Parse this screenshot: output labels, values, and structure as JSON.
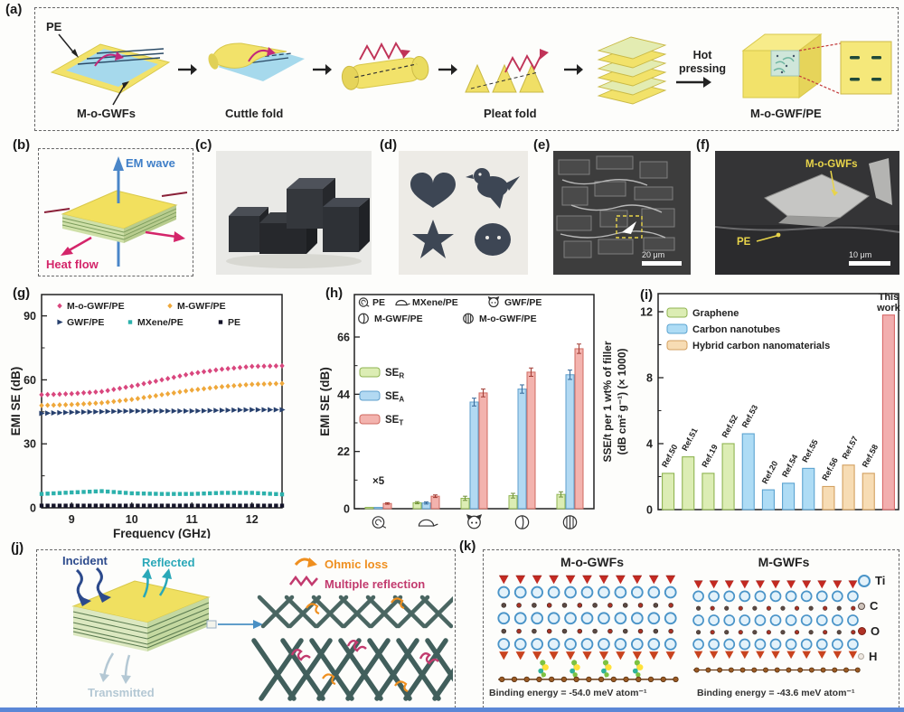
{
  "figure": {
    "panel_a": {
      "label": "(a)",
      "pe": "PE",
      "material": "M-o-GWFs",
      "step_cuttle": "Cuttle fold",
      "step_pleat": "Pleat fold",
      "process": "Hot pressing",
      "product": "M-o-GWF/PE"
    },
    "panel_b": {
      "label": "(b)",
      "em_wave": "EM wave",
      "heat_flow": "Heat flow"
    },
    "panel_c": {
      "label": "(c)"
    },
    "panel_d": {
      "label": "(d)"
    },
    "panel_e": {
      "label": "(e)",
      "scale": "20 μm"
    },
    "panel_f": {
      "label": "(f)",
      "top_label": "M-o-GWFs",
      "bottom_label": "PE",
      "scale": "10 μm"
    },
    "panel_g": {
      "label": "(g)"
    },
    "panel_h": {
      "label": "(h)"
    },
    "panel_i": {
      "label": "(i)"
    },
    "panel_j": {
      "label": "(j)",
      "incident": "Incident",
      "reflected": "Reflected",
      "transmitted": "Transmitted",
      "ohmic": "Ohmic loss",
      "multiple": "Multiple reflection"
    },
    "panel_k": {
      "label": "(k)",
      "left_title": "M-o-GWFs",
      "right_title": "M-GWFs",
      "atoms": [
        "Ti",
        "C",
        "O",
        "H"
      ],
      "left_binding": "Binding energy = -54.0 meV atom⁻¹",
      "right_binding": "Binding energy = -43.6 meV atom⁻¹"
    }
  },
  "chart_data": [
    {
      "id": "g",
      "type": "scatter",
      "xlabel": "Frequency (GHz)",
      "ylabel": "EMI SE (dB)",
      "xlim": [
        8.5,
        12.5
      ],
      "ylim": [
        0,
        100
      ],
      "xticks": [
        9,
        10,
        11,
        12
      ],
      "yticks": [
        0,
        30,
        60,
        90
      ],
      "legend_position": "top-left-inside",
      "x": [
        8.5,
        9,
        9.5,
        10,
        10.5,
        11,
        11.5,
        12,
        12.5
      ],
      "series": [
        {
          "name": "M-o-GWF/PE",
          "color": "#d9477e",
          "marker": "diamond",
          "values": [
            53,
            53.5,
            54.5,
            57,
            60,
            63,
            65,
            66.3,
            66.6
          ]
        },
        {
          "name": "M-GWF/PE",
          "color": "#efa83b",
          "marker": "diamond",
          "values": [
            48,
            48.4,
            49.2,
            50.8,
            53,
            55.2,
            56.8,
            57.9,
            58.3
          ]
        },
        {
          "name": "GWF/PE",
          "color": "#27406e",
          "marker": "triangle-right",
          "values": [
            44.3,
            44.8,
            45.1,
            45.4,
            45.4,
            45.4,
            45.7,
            46,
            46
          ]
        },
        {
          "name": "MXene/PE",
          "color": "#2cb1ac",
          "marker": "square",
          "values": [
            6.5,
            7.2,
            7.8,
            6.8,
            6.5,
            6.5,
            7,
            7,
            6.3
          ]
        },
        {
          "name": "PE",
          "color": "#15152a",
          "marker": "square",
          "values": [
            1,
            1,
            1,
            1,
            1,
            1,
            1,
            1,
            1
          ]
        }
      ]
    },
    {
      "id": "h",
      "type": "bar",
      "ylabel": "EMI SE (dB)",
      "ylim": [
        0,
        72
      ],
      "yticks": [
        0,
        22,
        44,
        66
      ],
      "annotation": "×5",
      "categories": [
        "PE",
        "MXene/PE",
        "GWF/PE",
        "M-GWF/PE",
        "M-o-GWF/PE"
      ],
      "category_icons": [
        "roll",
        "dome",
        "cat",
        "pleat",
        "phi"
      ],
      "series": [
        {
          "name": "SE",
          "sub": "R",
          "color": "#dcedb4",
          "border": "#8fb452",
          "err_color": "#70903a",
          "values": [
            0.5,
            2.3,
            4,
            5,
            5.5
          ],
          "errors": [
            0,
            0.4,
            0.8,
            0.9,
            1
          ]
        },
        {
          "name": "SE",
          "sub": "A",
          "color": "#b2d9f2",
          "border": "#5f9fcc",
          "err_color": "#35689a",
          "values": [
            0.5,
            2.2,
            41,
            46,
            51.5
          ],
          "errors": [
            0,
            0.4,
            1.5,
            1.6,
            1.8
          ]
        },
        {
          "name": "SE",
          "sub": "T",
          "color": "#f3b3ae",
          "border": "#cf6a60",
          "err_color": "#a03a32",
          "values": [
            2,
            4.8,
            44.5,
            52.5,
            61.5
          ],
          "errors": [
            0.3,
            0.5,
            1.5,
            1.6,
            1.8
          ]
        }
      ]
    },
    {
      "id": "i",
      "type": "bar",
      "ylabel": "SSE/t per 1 wt% of filler (dB cm² g⁻¹) (× 1000)",
      "ylabel_lines": [
        "SSE/t per 1 wt% of filler",
        "(dB cm² g⁻¹) (× 1000)"
      ],
      "ylim": [
        0,
        13
      ],
      "yticks": [
        0,
        4,
        8,
        12
      ],
      "legend": [
        "Graphene",
        "Carbon nanotubes",
        "Hybrid carbon nanomaterials"
      ],
      "legend_colors": [
        "#dcedb4",
        "#aedcf5",
        "#f7dcb4"
      ],
      "legend_borders": [
        "#8fb452",
        "#5ba3d0",
        "#d3a060"
      ],
      "categories": [
        "Ref.50",
        "Ref.51",
        "Ref.19",
        "Ref.52",
        "Ref.53",
        "Ref.20",
        "Ref.54",
        "Ref.55",
        "Ref.56",
        "Ref.57",
        "Ref.58",
        "This work"
      ],
      "groups": [
        "graphene",
        "graphene",
        "graphene",
        "graphene",
        "cnt",
        "cnt",
        "cnt",
        "cnt",
        "hybrid",
        "hybrid",
        "hybrid",
        "thiswork"
      ],
      "values": [
        2.2,
        3.2,
        2.2,
        4.0,
        4.6,
        1.2,
        1.6,
        2.5,
        1.4,
        2.7,
        2.2,
        11.8
      ],
      "colors": {
        "graphene": "#dcedb4",
        "cnt": "#aedcf5",
        "hybrid": "#f7dcb4",
        "thiswork": "#f2aeae"
      },
      "borders": {
        "graphene": "#8fb452",
        "cnt": "#5ba3d0",
        "hybrid": "#d3a060",
        "thiswork": "#d96a6a"
      },
      "highlight_label": "This work"
    }
  ]
}
